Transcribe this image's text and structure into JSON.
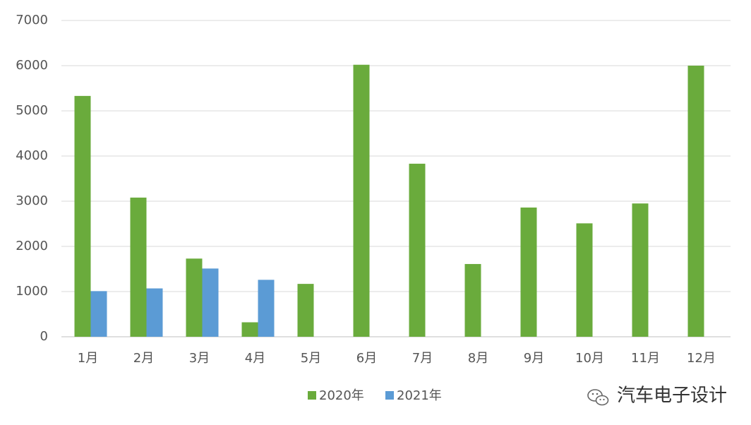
{
  "chart_data": {
    "type": "bar",
    "categories": [
      "1月",
      "2月",
      "3月",
      "4月",
      "5月",
      "6月",
      "7月",
      "8月",
      "9月",
      "10月",
      "11月",
      "12月"
    ],
    "series": [
      {
        "name": "2020年",
        "color": "#6aab3c",
        "values": [
          5330,
          3080,
          1730,
          320,
          1170,
          6020,
          3830,
          1610,
          2860,
          2510,
          2950,
          6000
        ]
      },
      {
        "name": "2021年",
        "color": "#5b9bd5",
        "values": [
          1010,
          1070,
          1510,
          1260,
          null,
          null,
          null,
          null,
          null,
          null,
          null,
          null
        ]
      }
    ],
    "ylim": [
      0,
      7000
    ],
    "yticks": [
      "0",
      "1000",
      "2000",
      "3000",
      "4000",
      "5000",
      "6000",
      "7000"
    ],
    "grid": true,
    "legend_position": "bottom"
  },
  "watermark": {
    "text": "汽车电子设计",
    "icon": "wechat-icon"
  }
}
